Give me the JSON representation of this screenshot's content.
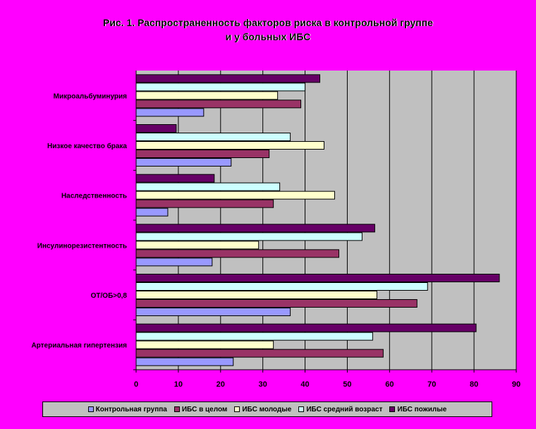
{
  "chart_data": {
    "type": "bar",
    "orientation": "horizontal",
    "title": "Рис. 1. Распространенность факторов риска в контрольной группе\nи у больных ИБС",
    "categories": [
      "Микроальбуминурия",
      "Низкое качество брака",
      "Наследственность",
      "Инсулинорезистентность",
      "ОТ/ОБ>0,8",
      "Артериальная гипертензия"
    ],
    "series": [
      {
        "name": "Контрольная группа",
        "color": "#9999ff",
        "values": [
          16,
          22.5,
          7.5,
          18,
          36.5,
          23
        ]
      },
      {
        "name": "ИБС в целом",
        "color": "#993366",
        "values": [
          39,
          31.5,
          32.5,
          48,
          66.5,
          58.5
        ]
      },
      {
        "name": "ИБС молодые",
        "color": "#ffffcc",
        "values": [
          33.5,
          44.5,
          47,
          29,
          57,
          32.5
        ]
      },
      {
        "name": "ИБС средний возраст",
        "color": "#ccffff",
        "values": [
          40,
          36.5,
          34,
          53.5,
          69,
          56
        ]
      },
      {
        "name": "ИБС пожилые",
        "color": "#660066",
        "values": [
          43.5,
          9.5,
          18.5,
          56.5,
          86,
          80.5
        ]
      }
    ],
    "xlim": [
      0,
      90
    ],
    "xticks": [
      "0",
      "10",
      "20",
      "30",
      "40",
      "50",
      "60",
      "70",
      "80",
      "90"
    ],
    "grid": true,
    "legend_position": "bottom",
    "plot_background": "#c0c0c0"
  }
}
